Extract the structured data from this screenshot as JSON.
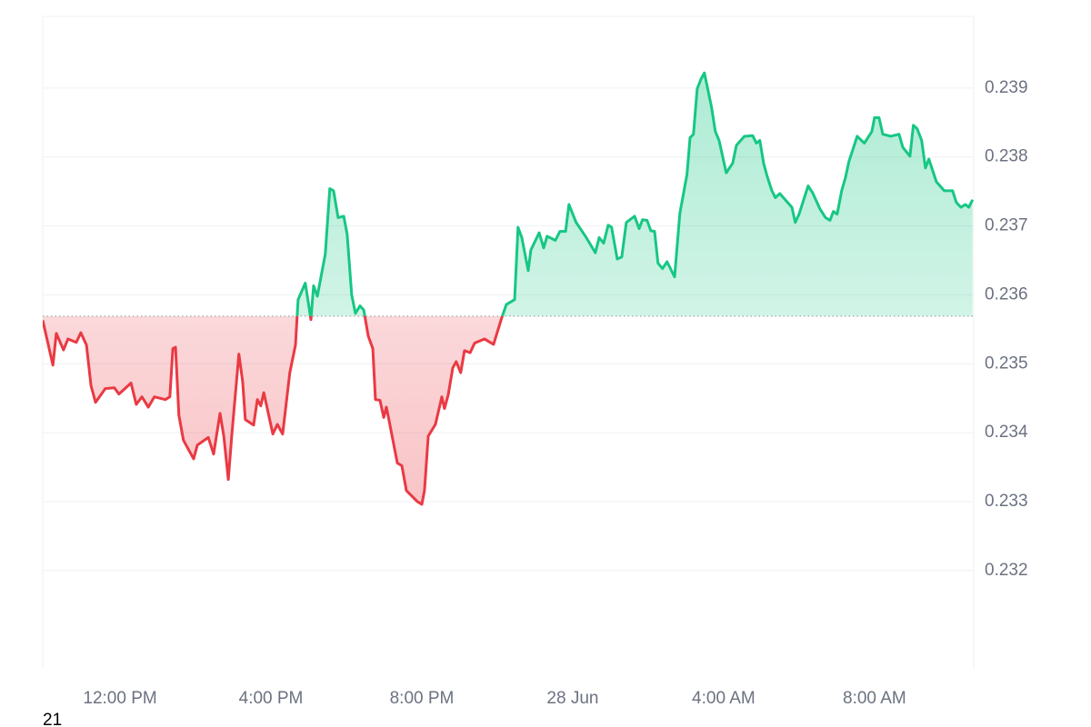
{
  "chart_data": {
    "type": "line",
    "x": [
      9.95,
      10.22,
      10.31,
      10.5,
      10.62,
      10.84,
      10.96,
      11.11,
      11.23,
      11.35,
      11.61,
      11.85,
      11.97,
      12.29,
      12.43,
      12.58,
      12.75,
      12.91,
      13.2,
      13.32,
      13.4,
      13.47,
      13.56,
      13.68,
      13.95,
      14.05,
      14.34,
      14.48,
      14.65,
      14.75,
      14.87,
      14.96,
      15.15,
      15.25,
      15.32,
      15.54,
      15.64,
      15.73,
      15.81,
      16.05,
      16.17,
      16.31,
      16.5,
      16.65,
      16.72,
      16.91,
      17.06,
      17.13,
      17.23,
      17.44,
      17.56,
      17.66,
      17.78,
      17.93,
      18.02,
      18.14,
      18.24,
      18.36,
      18.46,
      18.58,
      18.7,
      18.77,
      18.89,
      18.99,
      19.06,
      19.13,
      19.35,
      19.47,
      19.59,
      19.88,
      20.0,
      20.07,
      20.17,
      20.36,
      20.53,
      20.6,
      20.7,
      20.82,
      20.91,
      21.03,
      21.13,
      21.28,
      21.4,
      21.66,
      21.9,
      22.12,
      22.24,
      22.46,
      22.55,
      22.65,
      22.82,
      22.89,
      23.11,
      23.23,
      23.32,
      23.54,
      23.66,
      23.81,
      23.9,
      24.09,
      24.36,
      24.6,
      24.7,
      24.82,
      24.94,
      25.03,
      25.18,
      25.3,
      25.42,
      25.64,
      25.76,
      25.85,
      25.97,
      26.07,
      26.17,
      26.26,
      26.38,
      26.5,
      26.7,
      26.84,
      26.94,
      27.03,
      27.11,
      27.2,
      27.3,
      27.4,
      27.49,
      27.59,
      27.68,
      27.78,
      27.88,
      28.07,
      28.24,
      28.34,
      28.55,
      28.77,
      28.87,
      28.96,
      29.06,
      29.16,
      29.28,
      29.37,
      29.49,
      29.68,
      29.81,
      29.9,
      30.0,
      30.24,
      30.36,
      30.55,
      30.7,
      30.82,
      30.91,
      31.01,
      31.13,
      31.23,
      31.32,
      31.54,
      31.73,
      31.93,
      32.0,
      32.12,
      32.22,
      32.43,
      32.65,
      32.75,
      32.94,
      33.03,
      33.13,
      33.25,
      33.35,
      33.44,
      33.64,
      33.85,
      34.07,
      34.17,
      34.29,
      34.41,
      34.5,
      34.6
    ],
    "values": [
      0.23563,
      0.23498,
      0.23544,
      0.2352,
      0.23536,
      0.23531,
      0.23545,
      0.23527,
      0.23468,
      0.23444,
      0.23464,
      0.23465,
      0.23456,
      0.23472,
      0.23441,
      0.23452,
      0.23437,
      0.23452,
      0.23448,
      0.23452,
      0.23522,
      0.23524,
      0.23425,
      0.23389,
      0.23362,
      0.23382,
      0.23393,
      0.23369,
      0.23428,
      0.23395,
      0.23332,
      0.23395,
      0.23514,
      0.23474,
      0.23419,
      0.23411,
      0.23448,
      0.23439,
      0.23458,
      0.23398,
      0.23412,
      0.23398,
      0.23487,
      0.23527,
      0.23593,
      0.23617,
      0.23564,
      0.23613,
      0.23598,
      0.23659,
      0.23754,
      0.23751,
      0.23712,
      0.23714,
      0.23688,
      0.236,
      0.23573,
      0.23584,
      0.23578,
      0.2354,
      0.23522,
      0.23448,
      0.23447,
      0.23422,
      0.23437,
      0.23418,
      0.23356,
      0.23352,
      0.23316,
      0.233,
      0.23296,
      0.23316,
      0.23395,
      0.23412,
      0.23452,
      0.23435,
      0.23455,
      0.23494,
      0.23503,
      0.23487,
      0.23519,
      0.23516,
      0.2353,
      0.23536,
      0.23528,
      0.23567,
      0.23586,
      0.23593,
      0.23698,
      0.23683,
      0.23635,
      0.23665,
      0.2369,
      0.23668,
      0.23685,
      0.23679,
      0.23692,
      0.23692,
      0.23731,
      0.23705,
      0.23683,
      0.23661,
      0.23683,
      0.23675,
      0.23701,
      0.23698,
      0.23652,
      0.23655,
      0.23705,
      0.23714,
      0.23696,
      0.23709,
      0.23708,
      0.23693,
      0.23692,
      0.23646,
      0.23638,
      0.23648,
      0.23626,
      0.23718,
      0.23748,
      0.23775,
      0.23828,
      0.23833,
      0.23899,
      0.23913,
      0.23922,
      0.23896,
      0.23872,
      0.23837,
      0.23824,
      0.23777,
      0.23791,
      0.23817,
      0.2383,
      0.23831,
      0.2382,
      0.23824,
      0.23791,
      0.23771,
      0.23751,
      0.23741,
      0.23747,
      0.23735,
      0.23727,
      0.23705,
      0.23717,
      0.23758,
      0.23748,
      0.23725,
      0.23712,
      0.23708,
      0.23721,
      0.23717,
      0.23751,
      0.2377,
      0.23793,
      0.2383,
      0.2382,
      0.23837,
      0.23857,
      0.23857,
      0.23833,
      0.2383,
      0.23833,
      0.23814,
      0.23801,
      0.23846,
      0.23841,
      0.23824,
      0.23784,
      0.23797,
      0.23764,
      0.23751,
      0.23751,
      0.23734,
      0.23727,
      0.23731,
      0.23727,
      0.23738
    ],
    "baseline": 0.23569,
    "up_color": "#16c784",
    "down_color": "#ea3943",
    "xlim": [
      9.95,
      34.63
    ],
    "xticks": [
      {
        "value": 12,
        "label": "12:00 PM"
      },
      {
        "value": 16,
        "label": "4:00 PM"
      },
      {
        "value": 20,
        "label": "8:00 PM"
      },
      {
        "value": 24,
        "label": "28 Jun"
      },
      {
        "value": 28,
        "label": "4:00 AM"
      },
      {
        "value": 32,
        "label": "8:00 AM"
      }
    ],
    "ylim": [
      0.23056,
      0.24004
    ],
    "yticks": [
      0.232,
      0.233,
      0.234,
      0.235,
      0.236,
      0.237,
      0.238,
      0.239
    ],
    "grid": true,
    "footer_label": "21"
  }
}
